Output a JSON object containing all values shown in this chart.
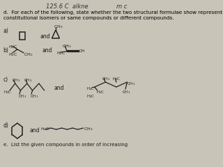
{
  "bg_color": "#c8c4b8",
  "title_top_left": "125.6 C  alkne",
  "title_top_right": "m c",
  "question_d": "d.  For each of the following, state whether the two structural formulae show represent",
  "question_d2": "constitutional isomers or same compounds or different compounds.",
  "label_a": "a)",
  "label_b": "b)",
  "label_c": "c)",
  "label_d": "d)",
  "footer": "e.  List the given compounds in order of increasing",
  "and_text": "and"
}
